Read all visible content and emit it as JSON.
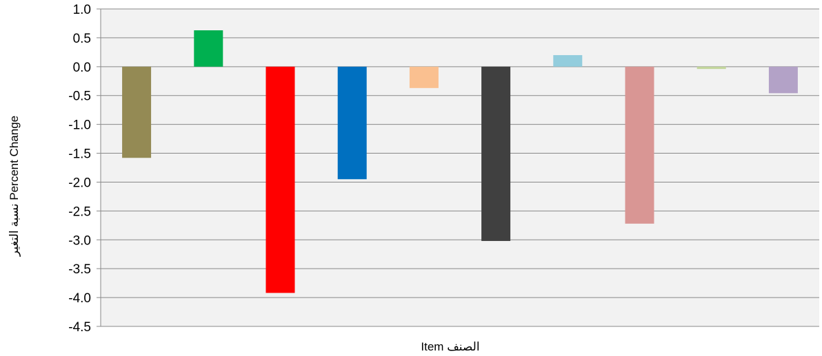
{
  "chart_data": {
    "type": "bar",
    "title": "",
    "xlabel": "الصنف   Item",
    "ylabel": "نسبة التغير   Percent Change",
    "ylim": [
      -4.5,
      1.0
    ],
    "yticks": [
      1.0,
      0.5,
      0.0,
      -0.5,
      -1.0,
      -1.5,
      -2.0,
      -2.5,
      -3.0,
      -3.5,
      -4.0,
      -4.5
    ],
    "ytick_labels": [
      "1.0",
      "0.5",
      "0.0",
      "-0.5",
      "-1.0",
      "-1.5",
      "-2.0",
      "-2.5",
      "-3.0",
      "-3.5",
      "-4.0",
      "-4.5"
    ],
    "grid": true,
    "legend": "none",
    "plot_background": "#f2f2f2",
    "gridline_color": "#888888",
    "values": [
      -1.58,
      0.63,
      -3.92,
      -1.95,
      -0.37,
      -3.02,
      0.2,
      -2.72,
      -0.04,
      -0.46
    ],
    "colors": [
      "#948a54",
      "#00b050",
      "#ff0000",
      "#0070c0",
      "#fac090",
      "#404040",
      "#93cddd",
      "#d99694",
      "#c3d69b",
      "#b3a2c7"
    ]
  }
}
